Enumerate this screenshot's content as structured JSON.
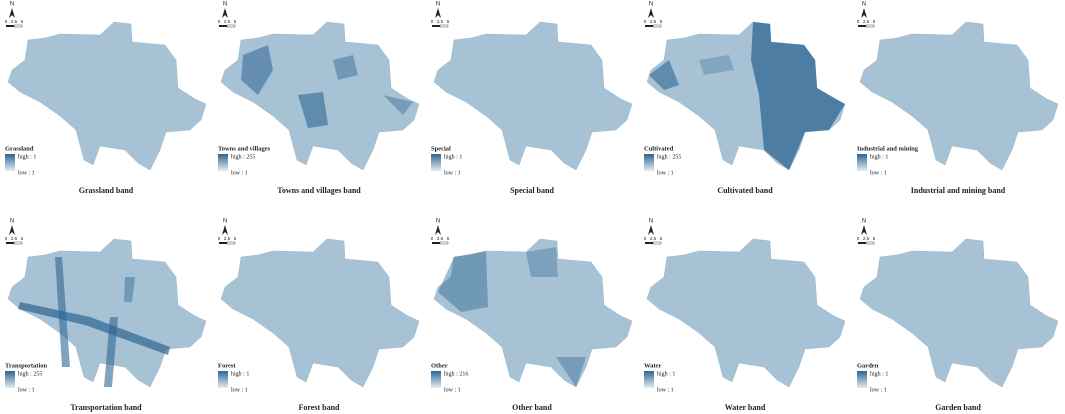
{
  "panels": [
    {
      "north": "N",
      "scale": [
        "0",
        "2.5",
        "5"
      ],
      "legend_title": "Grassland",
      "high": "high : 1",
      "low": "low : 1",
      "caption": "Grassland band"
    },
    {
      "north": "N",
      "scale": [
        "0",
        "2.5",
        "5"
      ],
      "legend_title": "Towns and villages",
      "high": "high : 255",
      "low": "low : 1",
      "caption": "Towns and villages band"
    },
    {
      "north": "N",
      "scale": [
        "0",
        "2.5",
        "5"
      ],
      "legend_title": "Special",
      "high": "high : 1",
      "low": "low : 1",
      "caption": "Special band"
    },
    {
      "north": "N",
      "scale": [
        "0",
        "2.5",
        "5"
      ],
      "legend_title": "Cultivated",
      "high": "high : 255",
      "low": "low : 1",
      "caption": "Cultivated band"
    },
    {
      "north": "N",
      "scale": [
        "0",
        "2.5",
        "5"
      ],
      "legend_title": "Industrial and mining",
      "high": "high : 1",
      "low": "low : 1",
      "caption": "Industrial and mining band"
    },
    {
      "north": "N",
      "scale": [
        "0",
        "2.5",
        "5"
      ],
      "legend_title": "Transportation",
      "high": "high : 255",
      "low": "low : 1",
      "caption": "Transportation band"
    },
    {
      "north": "N",
      "scale": [
        "0",
        "2.5",
        "5"
      ],
      "legend_title": "Forest",
      "high": "high : 1",
      "low": "low : 1",
      "caption": "Forest band"
    },
    {
      "north": "N",
      "scale": [
        "0",
        "2.5",
        "5"
      ],
      "legend_title": "Other",
      "high": "high : 216",
      "low": "low : 1",
      "caption": "Other band"
    },
    {
      "north": "N",
      "scale": [
        "0",
        "2.5",
        "5"
      ],
      "legend_title": "Water",
      "high": "high : 1",
      "low": "low : 1",
      "caption": "Water band"
    },
    {
      "north": "N",
      "scale": [
        "0",
        "2.5",
        "5"
      ],
      "legend_title": "Garden",
      "high": "high : 1",
      "low": "low : 1",
      "caption": "Garden band"
    }
  ]
}
